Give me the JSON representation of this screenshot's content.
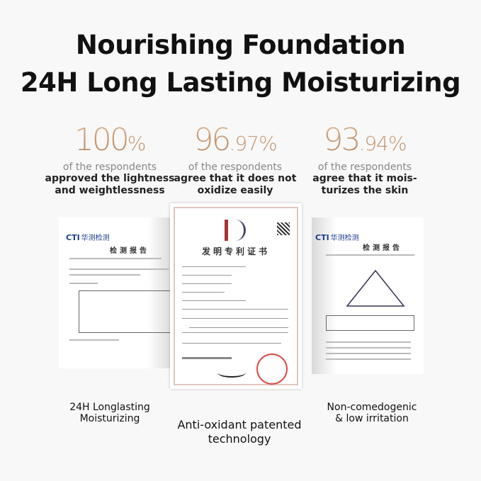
{
  "headline": {
    "line1": "Nourishing Foundation",
    "line2": "24H Long Lasting Moisturizing"
  },
  "stats": [
    {
      "int": "100",
      "dec": "%",
      "sub": "of the respondents",
      "l1": "approved the lightness",
      "l2": "and weightlessness"
    },
    {
      "int": "96",
      "dec": ".97%",
      "sub": "of the respondents",
      "l1": "agree that it does not",
      "l2": "oxidize easily"
    },
    {
      "int": "93",
      "dec": ".94%",
      "sub": "of the respondents",
      "l1": "agree that it mois-",
      "l2": "turizes the skin"
    }
  ],
  "documents": {
    "left": {
      "logo": "CTI",
      "brand": "华测检测",
      "title": "检测报告"
    },
    "center": {
      "title": "发明专利证书"
    },
    "right": {
      "logo": "CTI",
      "brand": "华测检测",
      "title": "检测报告"
    }
  },
  "captions": {
    "left": {
      "l1": "24H Longlasting",
      "l2": "Moisturizing"
    },
    "center": {
      "l1": "Anti-oxidant patented",
      "l2": "technology"
    },
    "right": {
      "l1": "Non-comedogenic",
      "l2": "& low irritation"
    }
  },
  "colors": {
    "gold": "#c89a6e",
    "seal": "#d9463c"
  }
}
